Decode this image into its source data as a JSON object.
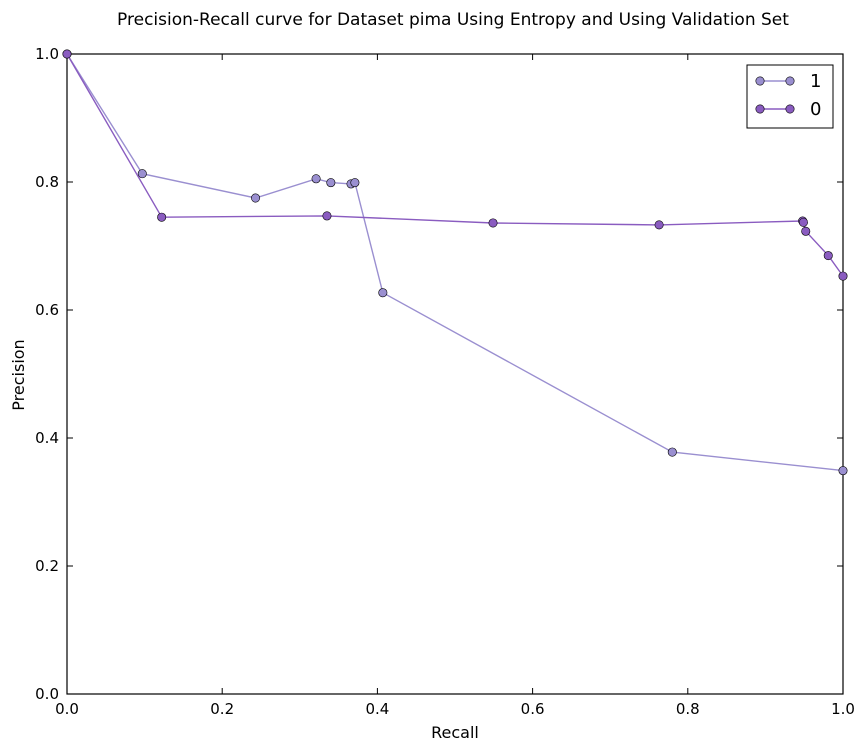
{
  "chart_data": {
    "type": "line",
    "title": "Precision-Recall curve for Dataset pima Using Entropy and Using Validation Set",
    "xlabel": "Recall",
    "ylabel": "Precision",
    "xlim": [
      0.0,
      1.0
    ],
    "ylim": [
      0.0,
      1.0
    ],
    "xticks": [
      "0.0",
      "0.2",
      "0.4",
      "0.6",
      "0.8",
      "1.0"
    ],
    "yticks": [
      "0.0",
      "0.2",
      "0.4",
      "0.6",
      "0.8",
      "1.0"
    ],
    "grid": false,
    "legend_position": "top-right",
    "series": [
      {
        "name": "1",
        "color": "#9a8fd0",
        "points": [
          [
            0.0,
            1.0
          ],
          [
            0.097,
            0.813
          ],
          [
            0.243,
            0.775
          ],
          [
            0.321,
            0.805
          ],
          [
            0.34,
            0.799
          ],
          [
            0.366,
            0.797
          ],
          [
            0.371,
            0.799
          ],
          [
            0.407,
            0.627
          ],
          [
            0.78,
            0.378
          ],
          [
            1.0,
            0.349
          ]
        ]
      },
      {
        "name": "0",
        "color": "#8a5cc0",
        "points": [
          [
            0.0,
            1.0
          ],
          [
            0.122,
            0.745
          ],
          [
            0.335,
            0.747
          ],
          [
            0.549,
            0.736
          ],
          [
            0.763,
            0.733
          ],
          [
            0.948,
            0.739
          ],
          [
            0.949,
            0.737
          ],
          [
            0.952,
            0.723
          ],
          [
            0.981,
            0.685
          ],
          [
            1.0,
            0.653
          ]
        ]
      }
    ]
  }
}
